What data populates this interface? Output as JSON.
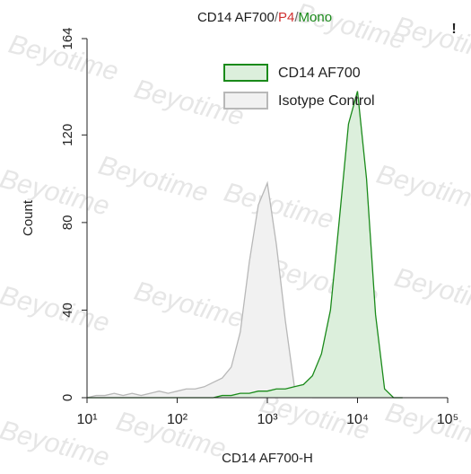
{
  "chart_data": {
    "type": "histogram-overlay",
    "title_parts": [
      {
        "text": "CD14 AF700",
        "color": "#1a1a1a"
      },
      {
        "text": "/",
        "color": "#666666"
      },
      {
        "text": "P4",
        "color": "#d03030"
      },
      {
        "text": "/",
        "color": "#666666"
      },
      {
        "text": "Mono",
        "color": "#1a8a1a"
      }
    ],
    "flag": "!",
    "watermark": "Beyotime",
    "x_label": "CD14 AF700-H",
    "y_label": "Count",
    "xscale": "log",
    "xlim": [
      10,
      100000
    ],
    "ylim": [
      0,
      164
    ],
    "xticks": [
      {
        "value": 10,
        "label": "10¹"
      },
      {
        "value": 100,
        "label": "10²"
      },
      {
        "value": 1000,
        "label": "10³"
      },
      {
        "value": 10000,
        "label": "10⁴"
      },
      {
        "value": 100000,
        "label": "10⁵"
      }
    ],
    "yticks": [
      0,
      40,
      80,
      120,
      164
    ],
    "legend_position": "upper right",
    "x": [
      10,
      12.6,
      15.8,
      20,
      25.1,
      31.6,
      39.8,
      50.1,
      63.1,
      79.4,
      100,
      126,
      158,
      200,
      251,
      316,
      398,
      501,
      631,
      794,
      1000,
      1259,
      1585,
      1995,
      2512,
      3162,
      3981,
      5012,
      6310,
      7943,
      10000,
      12589,
      15849,
      19953,
      25119,
      31623
    ],
    "series": [
      {
        "name": "CD14 AF700",
        "color": "#1a8a1a",
        "fill": "#dcefdc",
        "values": [
          0,
          0,
          0,
          0,
          0,
          0,
          0,
          0,
          0,
          0,
          0,
          0,
          0,
          0,
          0,
          1,
          1,
          2,
          2,
          3,
          3,
          4,
          4,
          5,
          6,
          10,
          20,
          40,
          82,
          125,
          140,
          100,
          38,
          4,
          0,
          0
        ]
      },
      {
        "name": "Isotype Control",
        "color": "#b8b8b8",
        "fill": "#f1f1f1",
        "values": [
          0,
          1,
          1,
          2,
          1,
          2,
          1,
          2,
          3,
          2,
          3,
          4,
          4,
          5,
          7,
          9,
          14,
          30,
          62,
          88,
          98,
          70,
          35,
          5,
          1,
          0,
          0,
          0,
          0,
          0,
          0,
          0,
          0,
          0,
          0,
          0
        ]
      }
    ]
  }
}
